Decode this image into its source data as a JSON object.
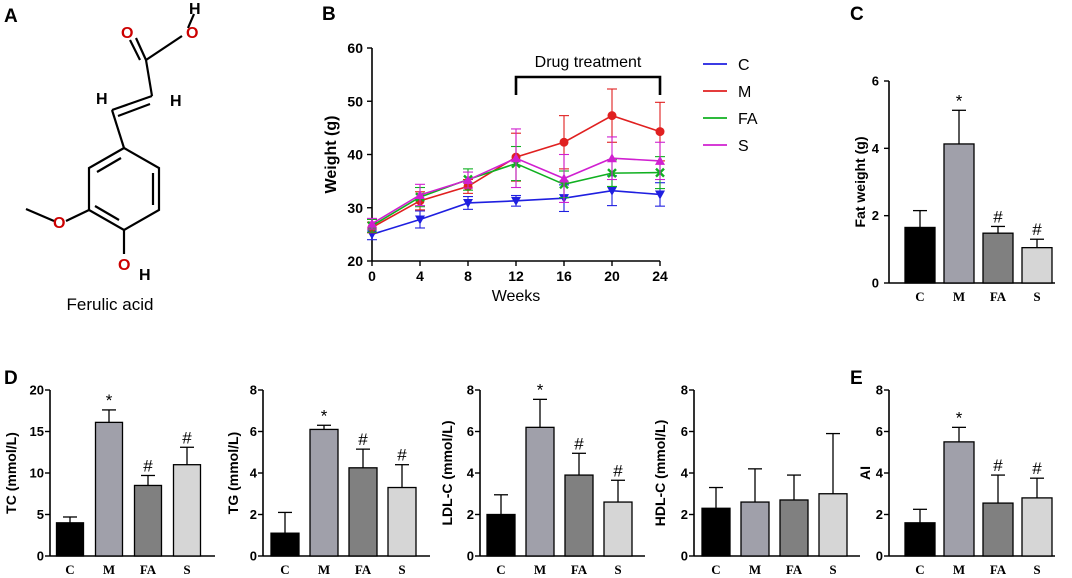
{
  "colors": {
    "C": "#000000",
    "M": "#a0a0aa",
    "FA": "#808080",
    "S": "#d6d6d6",
    "line_C": "#1f1fe0",
    "line_M": "#e02020",
    "line_FA": "#10b020",
    "line_S": "#d020d0",
    "oxygen": "#cc0000"
  },
  "panel_labels": [
    "A",
    "B",
    "C",
    "D",
    "E"
  ],
  "molecule": {
    "name": "Ferulic acid",
    "atoms": {
      "O_carbonyl": "O",
      "O_hydroxyl_top": "O",
      "H_top": "H",
      "H_left": "H",
      "H_right": "H",
      "O_methoxy": "O",
      "O_bottom": "O",
      "H_bottom": "H"
    }
  },
  "chart_data": [
    {
      "id": "B",
      "type": "line",
      "title": "",
      "xlabel": "Weeks",
      "ylabel": "Weight (g)",
      "x": [
        0,
        4,
        8,
        12,
        16,
        20,
        24
      ],
      "xlim": [
        0,
        24
      ],
      "ylim": [
        20,
        60
      ],
      "xticks": [
        "0",
        "4",
        "8",
        "12",
        "16",
        "20",
        "24"
      ],
      "yticks": [
        "20",
        "30",
        "40",
        "50",
        "60"
      ],
      "annotation": "Drug treatment",
      "annotation_range": [
        12,
        24
      ],
      "legend": [
        "C",
        "M",
        "FA",
        "S"
      ],
      "legend_position": "right",
      "series": [
        {
          "name": "C",
          "marker": "triangle-down",
          "values": [
            25.0,
            27.8,
            30.9,
            31.3,
            31.8,
            33.2,
            32.5
          ],
          "errors": [
            1.0,
            1.6,
            1.2,
            1.0,
            2.5,
            2.8,
            2.2
          ]
        },
        {
          "name": "M",
          "marker": "circle",
          "values": [
            26.3,
            31.3,
            34.0,
            39.5,
            42.3,
            47.3,
            44.3
          ],
          "errors": [
            1.0,
            1.7,
            1.3,
            4.5,
            5.0,
            5.0,
            5.5
          ]
        },
        {
          "name": "FA",
          "marker": "x",
          "values": [
            26.6,
            32.0,
            35.3,
            38.3,
            34.4,
            36.5,
            36.6
          ],
          "errors": [
            1.2,
            1.8,
            2.0,
            3.2,
            2.5,
            2.5,
            3.0
          ]
        },
        {
          "name": "S",
          "marker": "triangle-up",
          "values": [
            27.0,
            32.4,
            35.2,
            39.3,
            35.5,
            39.3,
            38.8
          ],
          "errors": [
            1.0,
            2.0,
            1.5,
            5.5,
            4.5,
            4.0,
            3.5
          ]
        }
      ]
    },
    {
      "id": "C",
      "type": "bar",
      "ylabel": "Fat weight (g)",
      "ylim": [
        0,
        6
      ],
      "yticks": [
        "0",
        "2",
        "4",
        "6"
      ],
      "categories": [
        "C",
        "M",
        "FA",
        "S"
      ],
      "values": [
        1.65,
        4.13,
        1.48,
        1.05
      ],
      "errors": [
        0.5,
        1.0,
        0.2,
        0.25
      ],
      "annotations": [
        "",
        "*",
        "#",
        "#"
      ]
    },
    {
      "id": "D1",
      "type": "bar",
      "ylabel": "TC (mmol/L)",
      "ylim": [
        0,
        20
      ],
      "yticks": [
        "0",
        "5",
        "10",
        "15",
        "20"
      ],
      "categories": [
        "C",
        "M",
        "FA",
        "S"
      ],
      "values": [
        4.0,
        16.1,
        8.5,
        11.0
      ],
      "errors": [
        0.7,
        1.5,
        1.2,
        2.1
      ],
      "annotations": [
        "",
        "*",
        "#",
        "#"
      ]
    },
    {
      "id": "D2",
      "type": "bar",
      "ylabel": "TG (mmol/L)",
      "ylim": [
        0,
        8
      ],
      "yticks": [
        "0",
        "2",
        "4",
        "6",
        "8"
      ],
      "categories": [
        "C",
        "M",
        "FA",
        "S"
      ],
      "values": [
        1.1,
        6.1,
        4.25,
        3.3
      ],
      "errors": [
        1.0,
        0.2,
        0.9,
        1.1
      ],
      "annotations": [
        "",
        "*",
        "#",
        "#"
      ]
    },
    {
      "id": "D3",
      "type": "bar",
      "ylabel": "LDL-C (mmol/L)",
      "ylim": [
        0,
        8
      ],
      "yticks": [
        "0",
        "2",
        "4",
        "6",
        "8"
      ],
      "categories": [
        "C",
        "M",
        "FA",
        "S"
      ],
      "values": [
        2.0,
        6.2,
        3.9,
        2.6
      ],
      "errors": [
        0.95,
        1.35,
        1.05,
        1.05
      ],
      "annotations": [
        "",
        "*",
        "#",
        "#"
      ]
    },
    {
      "id": "D4",
      "type": "bar",
      "ylabel": "HDL-C (mmol/L)",
      "ylim": [
        0,
        8
      ],
      "yticks": [
        "0",
        "2",
        "4",
        "6",
        "8"
      ],
      "categories": [
        "C",
        "M",
        "FA",
        "S"
      ],
      "values": [
        2.3,
        2.6,
        2.7,
        3.0
      ],
      "errors": [
        1.0,
        1.6,
        1.2,
        2.9
      ],
      "annotations": [
        "",
        "",
        "",
        ""
      ]
    },
    {
      "id": "E",
      "type": "bar",
      "ylabel": "AI",
      "ylim": [
        0,
        8
      ],
      "yticks": [
        "0",
        "2",
        "4",
        "6",
        "8"
      ],
      "categories": [
        "C",
        "M",
        "FA",
        "S"
      ],
      "values": [
        1.6,
        5.5,
        2.55,
        2.8
      ],
      "errors": [
        0.65,
        0.7,
        1.35,
        0.95
      ],
      "annotations": [
        "",
        "*",
        "#",
        "#"
      ]
    }
  ]
}
